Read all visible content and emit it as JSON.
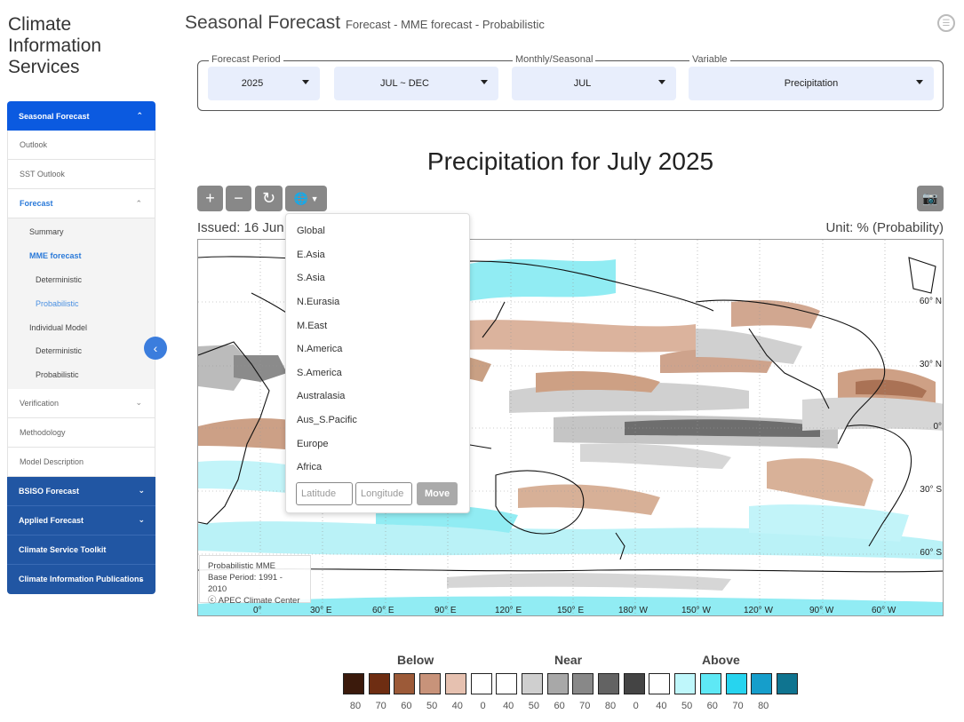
{
  "brand": {
    "line1": "Climate",
    "line2": "Information",
    "line3": "Services"
  },
  "sidebar": {
    "seasonal": "Seasonal Forecast",
    "outlook": "Outlook",
    "sst": "SST Outlook",
    "forecast": "Forecast",
    "summary": "Summary",
    "mme": "MME forecast",
    "mme_det": "Deterministic",
    "mme_prob": "Probabilistic",
    "indiv": "Individual Model",
    "indiv_det": "Deterministic",
    "indiv_prob": "Probabilistic",
    "verification": "Verification",
    "methodology": "Methodology",
    "model_desc": "Model Description",
    "bsiso": "BSISO Forecast",
    "applied": "Applied Forecast",
    "toolkit": "Climate Service Toolkit",
    "publications": "Climate Information Publications"
  },
  "header": {
    "title": "Seasonal Forecast",
    "subtitle": "Forecast - MME forecast - Probabilistic"
  },
  "filters": {
    "year": {
      "label": "Forecast Period",
      "value": "2025"
    },
    "period": {
      "value": "JUL ~ DEC"
    },
    "month": {
      "label": "Monthly/Seasonal",
      "value": "JUL"
    },
    "variable": {
      "label": "Variable",
      "value": "Precipitation"
    }
  },
  "chart": {
    "title": "Precipitation for July 2025",
    "issued": "Issued: 16 Jun",
    "unit": "Unit: % (Probability)",
    "info_line1": "Probabilistic MME",
    "info_line2": "Base Period: 1991 - 2010",
    "info_line3": "ⓒ APEC Climate Center",
    "lon_labels": [
      "0°",
      "30° E",
      "60° E",
      "90° E",
      "120° E",
      "150° E",
      "180° W",
      "150° W",
      "120° W",
      "90° W",
      "60° W"
    ],
    "lat_labels": [
      "60° N",
      "30° N",
      "0°",
      "30° S",
      "60° S"
    ]
  },
  "region_menu": {
    "items": [
      "Global",
      "E.Asia",
      "S.Asia",
      "N.Eurasia",
      "M.East",
      "N.America",
      "S.America",
      "Australasia",
      "Aus_S.Pacific",
      "Europe",
      "Africa"
    ],
    "lat_placeholder": "Latitude",
    "lon_placeholder": "Longitude",
    "move": "Move"
  },
  "legend": {
    "below": "Below",
    "near": "Near",
    "above": "Above",
    "values": [
      "80",
      "70",
      "60",
      "50",
      "40",
      "0",
      "40",
      "50",
      "60",
      "70",
      "80",
      "0",
      "40",
      "50",
      "60",
      "70",
      "80"
    ],
    "colors": [
      "#3b1a0c",
      "#6e2d12",
      "#9c5a38",
      "#c8937a",
      "#e6c1b0",
      "#ffffff",
      "#ffffff",
      "#cfcfcf",
      "#a8a8a8",
      "#888888",
      "#636363",
      "#444444",
      "#ffffff",
      "#bff7fb",
      "#5ee8f5",
      "#27d4ef",
      "#169ecb",
      "#0f7490"
    ]
  }
}
